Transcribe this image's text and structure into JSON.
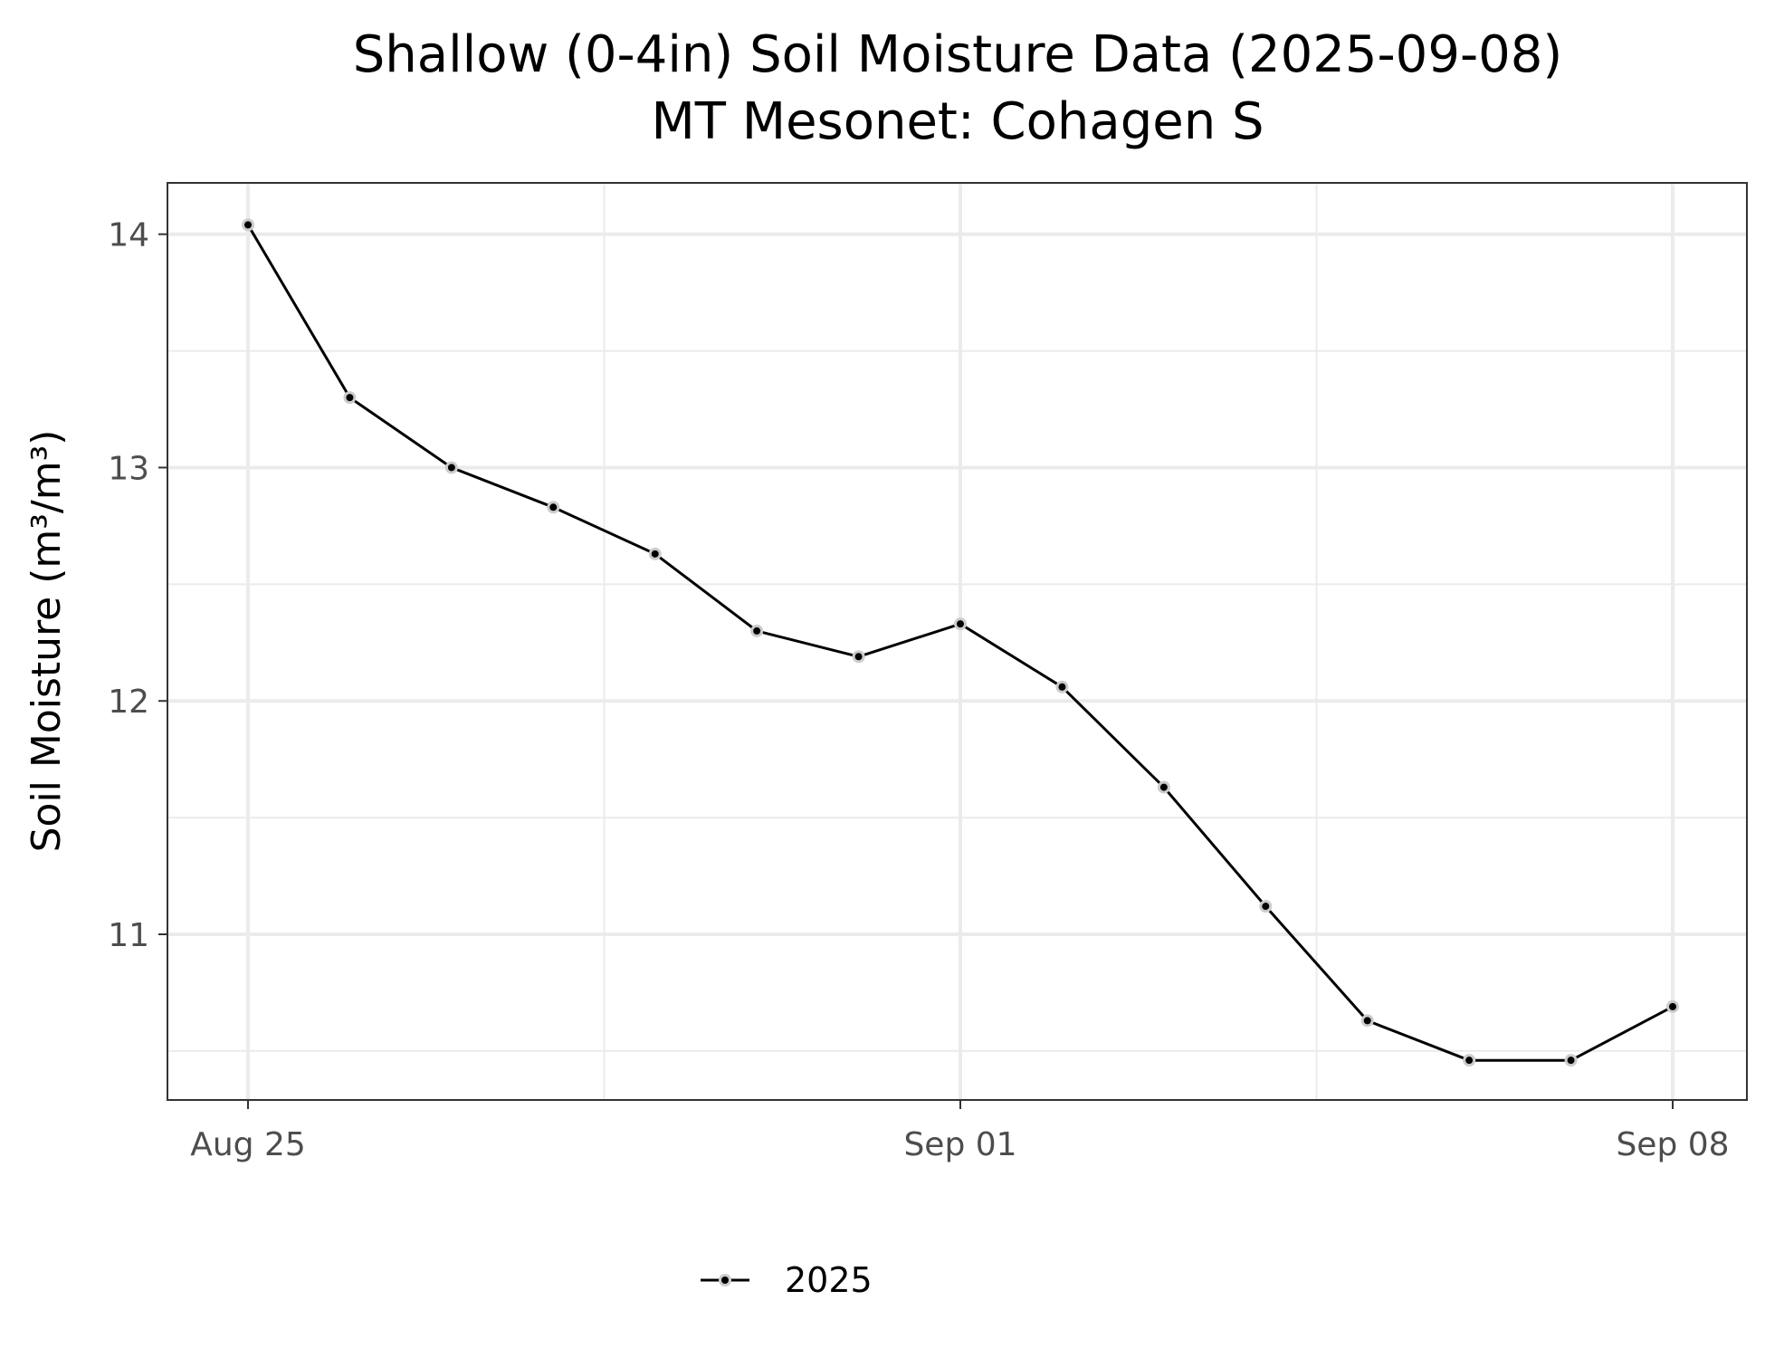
{
  "chart_data": {
    "type": "line",
    "title": "Shallow (0-4in) Soil Moisture Data (2025-09-08)",
    "subtitle": "MT Mesonet: Cohagen S",
    "xlabel": "",
    "ylabel": "Soil Moisture (m³/m³)",
    "x": [
      "2025-08-25",
      "2025-08-26",
      "2025-08-27",
      "2025-08-28",
      "2025-08-29",
      "2025-08-30",
      "2025-08-31",
      "2025-09-01",
      "2025-09-02",
      "2025-09-03",
      "2025-09-04",
      "2025-09-05",
      "2025-09-06",
      "2025-09-07",
      "2025-09-08"
    ],
    "series": [
      {
        "name": "2025",
        "color": "#000000",
        "values": [
          14.04,
          13.3,
          13.0,
          12.83,
          12.63,
          12.3,
          12.19,
          12.33,
          12.06,
          11.63,
          11.12,
          10.63,
          10.46,
          10.46,
          10.69
        ]
      }
    ],
    "x_ticks": [
      {
        "date": "2025-08-25",
        "label": "Aug 25"
      },
      {
        "date": "2025-09-01",
        "label": "Sep 01"
      },
      {
        "date": "2025-09-08",
        "label": "Sep 08"
      }
    ],
    "x_minor_ticks": [
      "2025-08-28T12:00",
      "2025-09-04T12:00"
    ],
    "xlim": [
      "2025-08-24T05:00",
      "2025-09-08T17:30"
    ],
    "y_ticks": [
      11,
      12,
      13,
      14
    ],
    "y_minor_ticks": [
      10.5,
      11.5,
      12.5,
      13.5
    ],
    "ylim": [
      10.29,
      14.22
    ],
    "grid": true,
    "legend_position": "bottom",
    "colors": {
      "panel_border": "#333333",
      "grid": "#ebebeb",
      "point_outline": "#cccccc",
      "tick_label": "#4d4d4d"
    }
  }
}
